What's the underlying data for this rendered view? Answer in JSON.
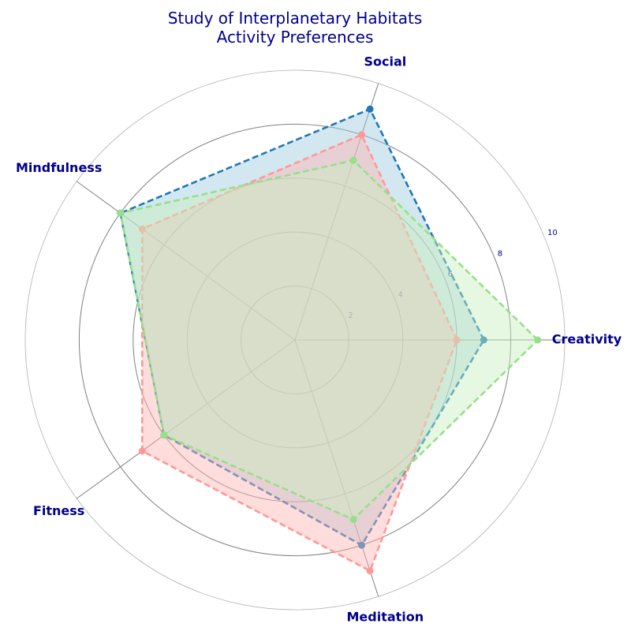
{
  "chart_data": {
    "type": "radar",
    "title": [
      "Study of Interplanetary Habitats",
      "Activity Preferences"
    ],
    "categories": [
      "Creativity",
      "Social",
      "Mindfulness",
      "Fitness",
      "Meditation"
    ],
    "r_ticks": [
      2,
      4,
      6,
      8,
      10
    ],
    "r_max": 10,
    "grid": true,
    "series": [
      {
        "values": [
          7,
          9,
          8,
          6,
          8
        ],
        "color": "#1f77b4",
        "fill": "#9ecae1",
        "line_style": "dashed"
      },
      {
        "values": [
          6,
          8,
          7,
          7,
          9
        ],
        "color": "#ff9896",
        "fill": "#ffb3b1",
        "line_style": "dashed"
      },
      {
        "values": [
          9,
          7,
          8,
          6,
          7
        ],
        "color": "#98df8a",
        "fill": "#c7efbf",
        "line_style": "dashed"
      }
    ],
    "label_color": "#00008b",
    "grid_color": "#808080"
  }
}
